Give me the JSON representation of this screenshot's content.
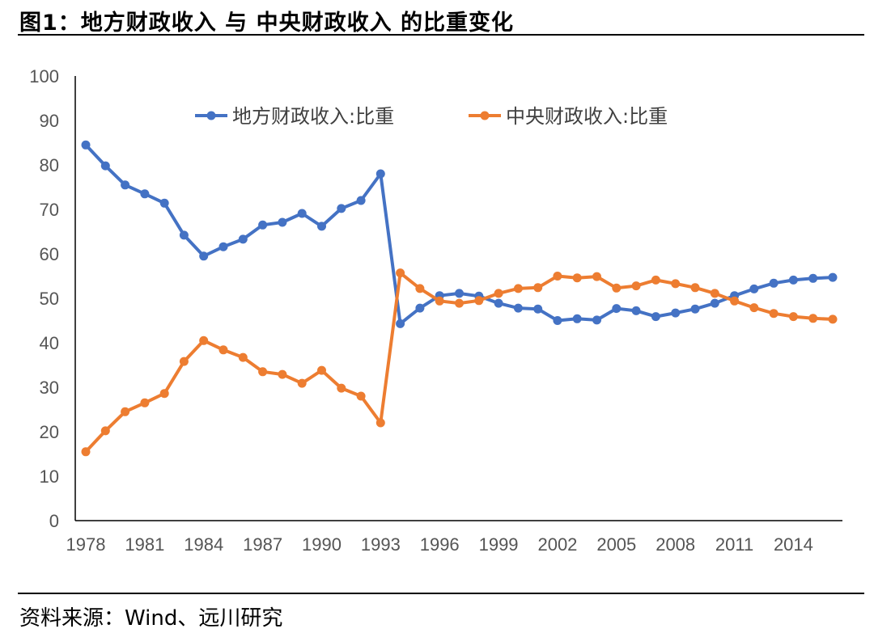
{
  "figure_title": "图1：地方财政收入 与 中央财政收入 的比重变化",
  "source_note": "资料来源：Wind、远川研究",
  "colors": {
    "local": "#4472C4",
    "central": "#ED7D31",
    "axis": "#000000"
  },
  "chart_data": {
    "type": "line",
    "title": "图1：地方财政收入 与 中央财政收入 的比重变化",
    "xlabel": "",
    "ylabel": "",
    "ylim": [
      0,
      100
    ],
    "yticks": [
      0,
      10,
      20,
      30,
      40,
      50,
      60,
      70,
      80,
      90,
      100
    ],
    "xtick_labels": [
      "1978",
      "1981",
      "1984",
      "1987",
      "1990",
      "1993",
      "1996",
      "1999",
      "2002",
      "2005",
      "2008",
      "2011",
      "2014"
    ],
    "legend_position": "top",
    "x": [
      1978,
      1979,
      1980,
      1981,
      1982,
      1983,
      1984,
      1985,
      1986,
      1987,
      1988,
      1989,
      1990,
      1991,
      1992,
      1993,
      1994,
      1995,
      1996,
      1997,
      1998,
      1999,
      2000,
      2001,
      2002,
      2003,
      2004,
      2005,
      2006,
      2007,
      2008,
      2009,
      2010,
      2011,
      2012,
      2013,
      2014,
      2015,
      2016
    ],
    "series": [
      {
        "name": "地方财政收入:比重",
        "color": "#4472C4",
        "values": [
          84.5,
          79.8,
          75.5,
          73.5,
          71.4,
          64.2,
          59.5,
          61.6,
          63.3,
          66.5,
          67.1,
          69.1,
          66.2,
          70.2,
          72.0,
          78.0,
          44.3,
          47.8,
          50.6,
          51.1,
          50.5,
          48.9,
          47.8,
          47.6,
          45.0,
          45.4,
          45.1,
          47.7,
          47.2,
          45.9,
          46.7,
          47.6,
          48.9,
          50.6,
          52.1,
          53.4,
          54.1,
          54.5,
          54.7
        ]
      },
      {
        "name": "中央财政收入:比重",
        "color": "#ED7D31",
        "values": [
          15.5,
          20.2,
          24.5,
          26.5,
          28.6,
          35.8,
          40.5,
          38.4,
          36.7,
          33.5,
          32.9,
          30.9,
          33.8,
          29.8,
          28.0,
          22.0,
          55.7,
          52.2,
          49.4,
          48.9,
          49.5,
          51.1,
          52.2,
          52.4,
          55.0,
          54.6,
          54.9,
          52.3,
          52.8,
          54.1,
          53.3,
          52.4,
          51.1,
          49.4,
          47.9,
          46.6,
          45.9,
          45.5,
          45.3
        ]
      }
    ]
  }
}
